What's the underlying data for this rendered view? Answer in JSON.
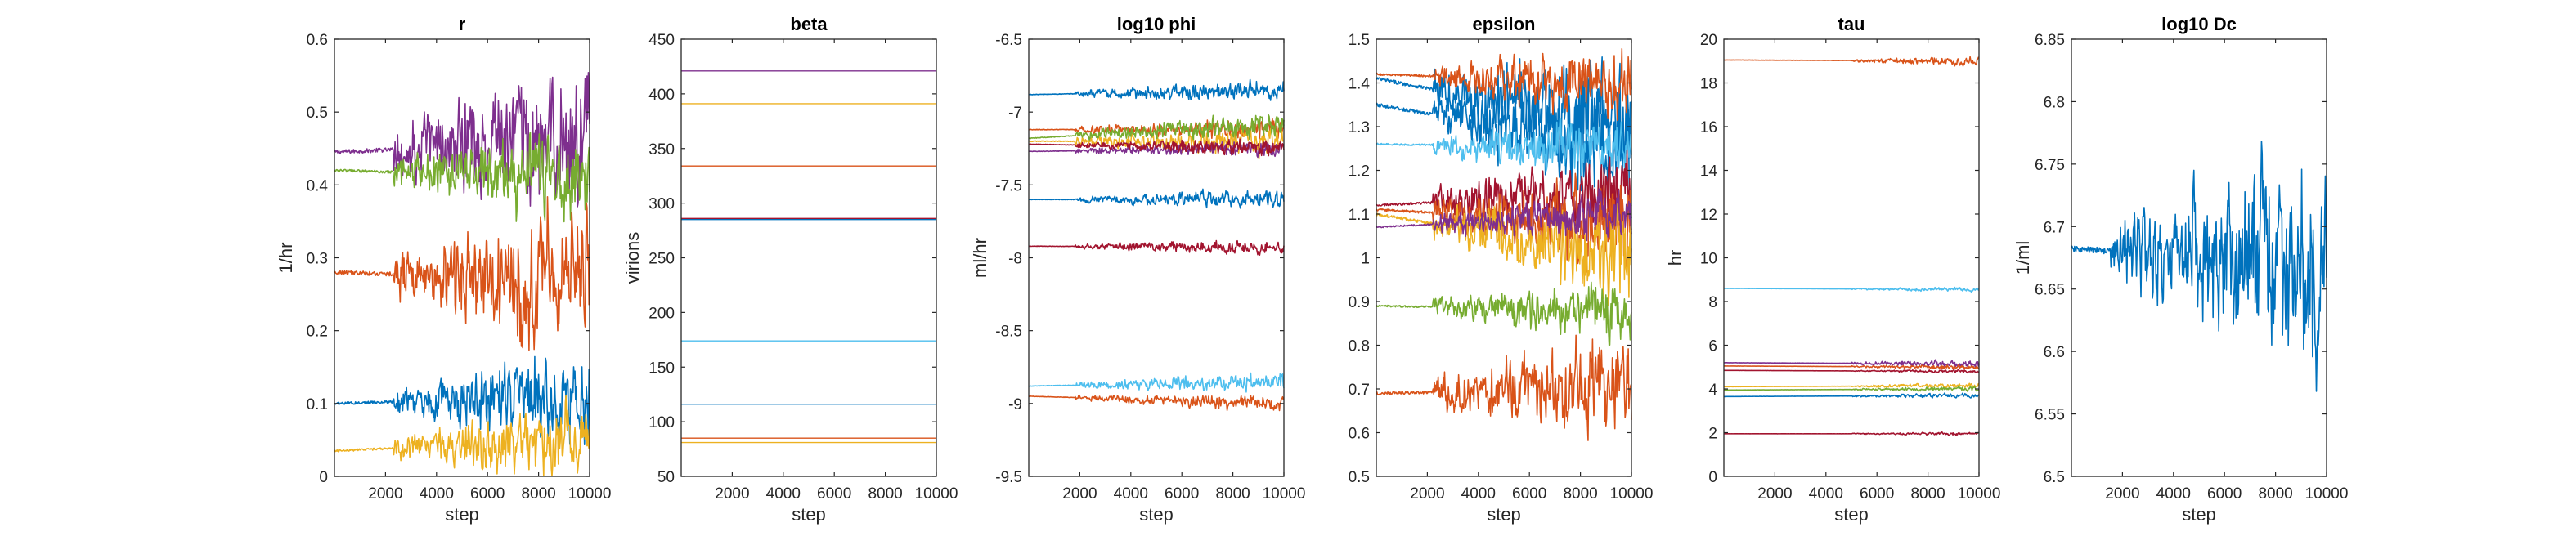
{
  "figure": {
    "colors": {
      "blue": "#0072BD",
      "orange": "#D95319",
      "yellow": "#EDB120",
      "purple": "#7E2F8E",
      "green": "#77AC30",
      "cyan": "#4DBEEE",
      "maroon": "#A2142F",
      "axis": "#262626"
    }
  },
  "chart_data": [
    {
      "type": "line",
      "title": "r",
      "xlabel": "step",
      "ylabel": "1/hr",
      "xlim": [
        0,
        10000
      ],
      "ylim": [
        0,
        0.6
      ],
      "xticks": [
        2000,
        4000,
        6000,
        8000,
        10000
      ],
      "xtick_labels": [
        "2000",
        "4000",
        "6000",
        "8000",
        "10000"
      ],
      "yticks": [
        0,
        0.1,
        0.2,
        0.3,
        0.4,
        0.5,
        0.6
      ],
      "ytick_labels": [
        "0",
        "0.1",
        "0.2",
        "0.3",
        "0.4",
        "0.5",
        "0.6"
      ],
      "grid": false,
      "legend": "none",
      "series": [
        {
          "color": "purple",
          "start": 0.445,
          "end": 0.46,
          "burnin": 2300,
          "amp_max": 0.07
        },
        {
          "color": "green",
          "start": 0.42,
          "end": 0.41,
          "burnin": 2300,
          "amp_max": 0.045
        },
        {
          "color": "orange",
          "start": 0.28,
          "end": 0.27,
          "burnin": 2300,
          "amp_max": 0.07
        },
        {
          "color": "blue",
          "start": 0.1,
          "end": 0.11,
          "burnin": 2300,
          "amp_max": 0.045
        },
        {
          "color": "yellow",
          "start": 0.035,
          "end": 0.05,
          "burnin": 2300,
          "amp_max": 0.035
        }
      ]
    },
    {
      "type": "line",
      "title": "beta",
      "xlabel": "step",
      "ylabel": "virions",
      "xlim": [
        0,
        10000
      ],
      "ylim": [
        50,
        450
      ],
      "xticks": [
        2000,
        4000,
        6000,
        8000,
        10000
      ],
      "xtick_labels": [
        "2000",
        "4000",
        "6000",
        "8000",
        "10000"
      ],
      "yticks": [
        50,
        100,
        150,
        200,
        250,
        300,
        350,
        400,
        450
      ],
      "ytick_labels": [
        "50",
        "100",
        "150",
        "200",
        "250",
        "300",
        "350",
        "400",
        "450"
      ],
      "grid": false,
      "legend": "none",
      "series": [
        {
          "color": "purple",
          "start": 421,
          "end": 421,
          "burnin": 10000,
          "amp_max": 0
        },
        {
          "color": "yellow",
          "start": 391,
          "end": 391,
          "burnin": 10000,
          "amp_max": 0
        },
        {
          "color": "orange",
          "start": 334,
          "end": 334,
          "burnin": 10000,
          "amp_max": 0
        },
        {
          "color": "maroon",
          "start": 286,
          "end": 286,
          "burnin": 10000,
          "amp_max": 0
        },
        {
          "color": "blue",
          "start": 285,
          "end": 285,
          "burnin": 10000,
          "amp_max": 0
        },
        {
          "color": "cyan",
          "start": 174,
          "end": 174,
          "burnin": 10000,
          "amp_max": 0
        },
        {
          "color": "blue",
          "start": 116,
          "end": 116,
          "burnin": 10000,
          "amp_max": 0
        },
        {
          "color": "orange",
          "start": 85,
          "end": 85,
          "burnin": 10000,
          "amp_max": 0
        },
        {
          "color": "yellow",
          "start": 81,
          "end": 81,
          "burnin": 10000,
          "amp_max": 0
        }
      ]
    },
    {
      "type": "line",
      "title": "log10 phi",
      "xlabel": "step",
      "ylabel": "ml/hr",
      "xlim": [
        0,
        10000
      ],
      "ylim": [
        -9.5,
        -6.5
      ],
      "xticks": [
        2000,
        4000,
        6000,
        8000,
        10000
      ],
      "xtick_labels": [
        "2000",
        "4000",
        "6000",
        "8000",
        "10000"
      ],
      "yticks": [
        -9.5,
        -9,
        -8.5,
        -8,
        -7.5,
        -7,
        -6.5
      ],
      "ytick_labels": [
        "-9.5",
        "-9",
        "-8.5",
        "-8",
        "-7.5",
        "-7",
        "-6.5"
      ],
      "grid": false,
      "legend": "none",
      "series": [
        {
          "color": "blue",
          "start": -6.88,
          "end": -6.85,
          "burnin": 1800,
          "amp_max": 0.05
        },
        {
          "color": "orange",
          "start": -7.12,
          "end": -7.12,
          "burnin": 1800,
          "amp_max": 0.05
        },
        {
          "color": "yellow",
          "start": -7.2,
          "end": -7.2,
          "burnin": 1800,
          "amp_max": 0.07
        },
        {
          "color": "green",
          "start": -7.18,
          "end": -7.08,
          "burnin": 1800,
          "amp_max": 0.06
        },
        {
          "color": "purple",
          "start": -7.27,
          "end": -7.25,
          "burnin": 1800,
          "amp_max": 0.04
        },
        {
          "color": "maroon",
          "start": -7.22,
          "end": -7.25,
          "burnin": 1800,
          "amp_max": 0.04
        },
        {
          "color": "blue",
          "start": -7.6,
          "end": -7.6,
          "burnin": 1800,
          "amp_max": 0.045
        },
        {
          "color": "maroon",
          "start": -7.92,
          "end": -7.93,
          "burnin": 1800,
          "amp_max": 0.035
        },
        {
          "color": "cyan",
          "start": -8.88,
          "end": -8.85,
          "burnin": 1800,
          "amp_max": 0.045
        },
        {
          "color": "orange",
          "start": -8.95,
          "end": -9.0,
          "burnin": 1800,
          "amp_max": 0.04
        }
      ]
    },
    {
      "type": "line",
      "title": "epsilon",
      "xlabel": "step",
      "ylabel": "",
      "xlim": [
        0,
        10000
      ],
      "ylim": [
        0.5,
        1.5
      ],
      "xticks": [
        2000,
        4000,
        6000,
        8000,
        10000
      ],
      "xtick_labels": [
        "2000",
        "4000",
        "6000",
        "8000",
        "10000"
      ],
      "yticks": [
        0.5,
        0.6,
        0.7,
        0.8,
        0.9,
        1.0,
        1.1,
        1.2,
        1.3,
        1.4,
        1.5
      ],
      "ytick_labels": [
        "0.5",
        "0.6",
        "0.7",
        "0.8",
        "0.9",
        "1",
        "1.1",
        "1.2",
        "1.3",
        "1.4",
        "1.5"
      ],
      "grid": false,
      "legend": "none",
      "series": [
        {
          "color": "blue",
          "start": 1.41,
          "end": 1.3,
          "burnin": 2200,
          "amp_max": 0.1
        },
        {
          "color": "blue",
          "start": 1.35,
          "end": 1.25,
          "burnin": 2200,
          "amp_max": 0.1
        },
        {
          "color": "cyan",
          "start": 1.26,
          "end": 1.25,
          "burnin": 2200,
          "amp_max": 0.05
        },
        {
          "color": "orange",
          "start": 1.42,
          "end": 1.4,
          "burnin": 2200,
          "amp_max": 0.06
        },
        {
          "color": "maroon",
          "start": 1.12,
          "end": 1.15,
          "burnin": 2200,
          "amp_max": 0.07
        },
        {
          "color": "orange",
          "start": 1.11,
          "end": 1.08,
          "burnin": 2200,
          "amp_max": 0.07
        },
        {
          "color": "yellow",
          "start": 1.1,
          "end": 1.0,
          "burnin": 2200,
          "amp_max": 0.08
        },
        {
          "color": "purple",
          "start": 1.07,
          "end": 1.1,
          "burnin": 2200,
          "amp_max": 0.04
        },
        {
          "color": "green",
          "start": 0.89,
          "end": 0.88,
          "burnin": 2200,
          "amp_max": 0.05
        },
        {
          "color": "orange",
          "start": 0.69,
          "end": 0.7,
          "burnin": 2200,
          "amp_max": 0.08
        }
      ]
    },
    {
      "type": "line",
      "title": "tau",
      "xlabel": "step",
      "ylabel": "hr",
      "xlim": [
        0,
        10000
      ],
      "ylim": [
        0,
        20
      ],
      "xticks": [
        2000,
        4000,
        6000,
        8000,
        10000
      ],
      "xtick_labels": [
        "2000",
        "4000",
        "6000",
        "8000",
        "10000"
      ],
      "yticks": [
        0,
        2,
        4,
        6,
        8,
        10,
        12,
        14,
        16,
        18,
        20
      ],
      "ytick_labels": [
        "0",
        "2",
        "4",
        "6",
        "8",
        "10",
        "12",
        "14",
        "16",
        "18",
        "20"
      ],
      "grid": false,
      "legend": "none",
      "series": [
        {
          "color": "orange",
          "start": 19.05,
          "end": 19.0,
          "burnin": 5000,
          "amp_max": 0.15
        },
        {
          "color": "cyan",
          "start": 8.6,
          "end": 8.55,
          "burnin": 5000,
          "amp_max": 0.07
        },
        {
          "color": "purple",
          "start": 5.2,
          "end": 5.15,
          "burnin": 5000,
          "amp_max": 0.12
        },
        {
          "color": "orange",
          "start": 5.05,
          "end": 5.0,
          "burnin": 5000,
          "amp_max": 0.08
        },
        {
          "color": "maroon",
          "start": 4.85,
          "end": 4.8,
          "burnin": 5000,
          "amp_max": 0.05
        },
        {
          "color": "yellow",
          "start": 4.1,
          "end": 4.15,
          "burnin": 5000,
          "amp_max": 0.08
        },
        {
          "color": "green",
          "start": 3.95,
          "end": 4.0,
          "burnin": 5000,
          "amp_max": 0.08
        },
        {
          "color": "blue",
          "start": 3.65,
          "end": 3.7,
          "burnin": 5000,
          "amp_max": 0.08
        },
        {
          "color": "maroon",
          "start": 1.95,
          "end": 1.95,
          "burnin": 5000,
          "amp_max": 0.05
        }
      ]
    },
    {
      "type": "line",
      "title": "log10 Dc",
      "xlabel": "step",
      "ylabel": "1/ml",
      "xlim": [
        0,
        10000
      ],
      "ylim": [
        6.5,
        6.85
      ],
      "xticks": [
        2000,
        4000,
        6000,
        8000,
        10000
      ],
      "xtick_labels": [
        "2000",
        "4000",
        "6000",
        "8000",
        "10000"
      ],
      "yticks": [
        6.5,
        6.55,
        6.6,
        6.65,
        6.7,
        6.75,
        6.8,
        6.85
      ],
      "ytick_labels": [
        "6.5",
        "6.55",
        "6.6",
        "6.65",
        "6.7",
        "6.75",
        "6.8",
        "6.85"
      ],
      "grid": false,
      "legend": "none",
      "series": [
        {
          "color": "blue",
          "start": 6.682,
          "end": 6.672,
          "burnin": 1500,
          "amp_max": 0.06
        }
      ]
    }
  ]
}
